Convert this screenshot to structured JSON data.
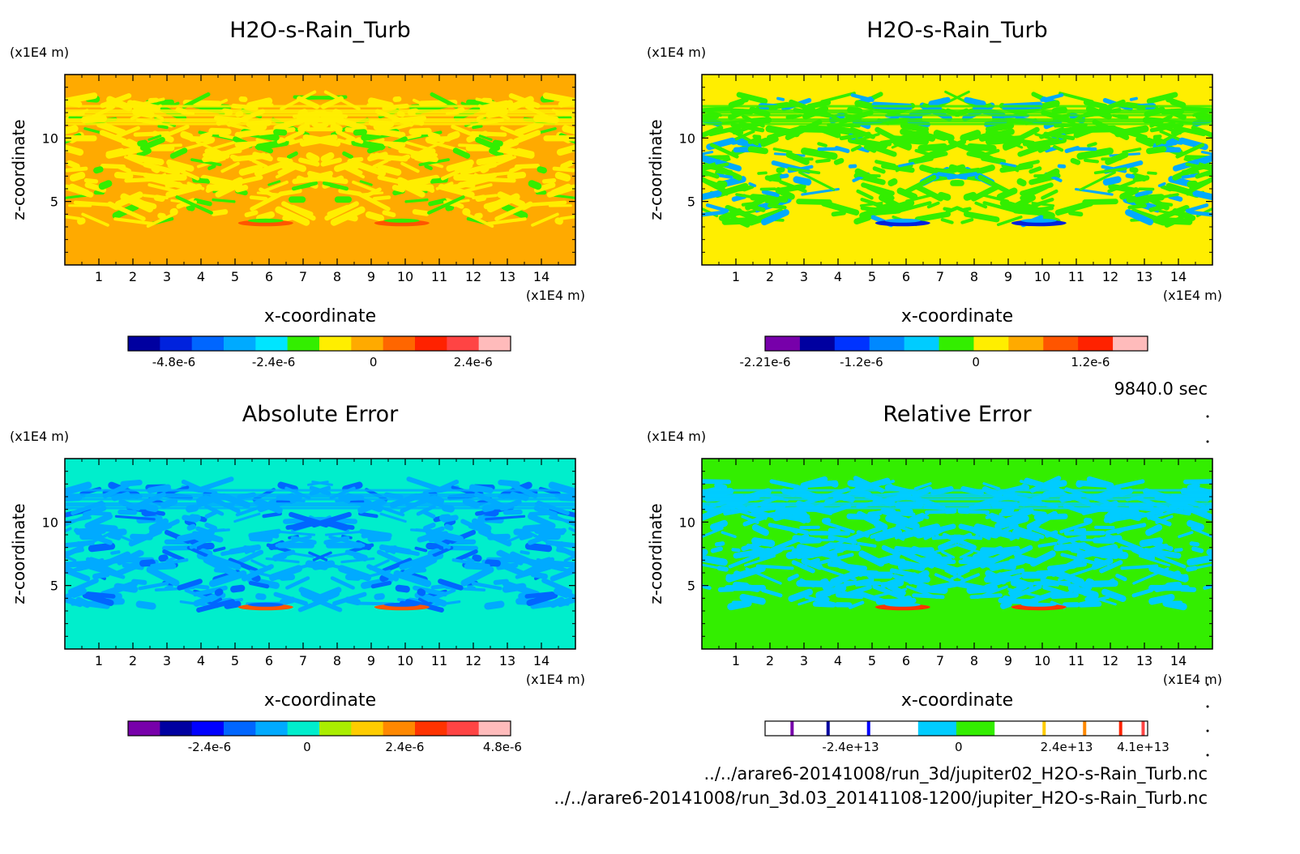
{
  "time_label": "9840.0 sec",
  "footer": {
    "file_a": "../../arare6-20141008/run_3d/jupiter02_H2O-s-Rain_Turb.nc",
    "file_b": "../../arare6-20141008/run_3d.03_20141108-1200/jupiter_H2O-s-Rain_Turb.nc"
  },
  "chart_data": [
    {
      "type": "heatmap",
      "title": "H2O-s-Rain_Turb",
      "xlabel": "x-coordinate",
      "ylabel": "z-coordinate",
      "x_unit": "(x1E4 m)",
      "y_unit": "(x1E4 m)",
      "xlim": [
        0,
        15
      ],
      "ylim": [
        0,
        15
      ],
      "x_ticks": [
        "1",
        "2",
        "3",
        "4",
        "5",
        "6",
        "7",
        "8",
        "9",
        "10",
        "11",
        "12",
        "13",
        "14"
      ],
      "y_ticks": [
        "5",
        "10"
      ],
      "background_color": "#ffaa00",
      "pattern_color": "#ffee00",
      "pattern_color_2": "#33ee00",
      "hotspot_color": "#ff5500",
      "colorbar": {
        "colors": [
          "#0000a0",
          "#0022dd",
          "#0066ff",
          "#00aaff",
          "#00e5ff",
          "#33ee00",
          "#ffee00",
          "#ffaa00",
          "#ff6600",
          "#ff2200",
          "#ff4444",
          "#ffbbbb"
        ],
        "tick_labels": [
          "-4.8e-6",
          "-2.4e-6",
          "0",
          "2.4e-6"
        ],
        "tick_positions": [
          -4.8e-06,
          -2.4e-06,
          0,
          2.4e-06
        ],
        "range": [
          -5.9e-06,
          3.3e-06
        ]
      }
    },
    {
      "type": "heatmap",
      "title": "H2O-s-Rain_Turb",
      "xlabel": "x-coordinate",
      "ylabel": "z-coordinate",
      "x_unit": "(x1E4 m)",
      "y_unit": "(x1E4 m)",
      "xlim": [
        0,
        15
      ],
      "ylim": [
        0,
        15
      ],
      "x_ticks": [
        "1",
        "2",
        "3",
        "4",
        "5",
        "6",
        "7",
        "8",
        "9",
        "10",
        "11",
        "12",
        "13",
        "14"
      ],
      "y_ticks": [
        "5",
        "10"
      ],
      "background_color": "#ffee00",
      "pattern_color": "#33ee00",
      "pattern_color_2": "#00aaff",
      "hotspot_color": "#0022dd",
      "colorbar": {
        "colors": [
          "#7700aa",
          "#0000a0",
          "#0033ff",
          "#0088ff",
          "#00ccff",
          "#33ee00",
          "#ffee00",
          "#ffaa00",
          "#ff5500",
          "#ff2200",
          "#ffbbbb"
        ],
        "tick_labels": [
          "-2.21e-6",
          "-1.2e-6",
          "0",
          "1.2e-6"
        ],
        "tick_positions": [
          -2.21e-06,
          -1.2e-06,
          0,
          1.2e-06
        ],
        "range": [
          -2.21e-06,
          1.8e-06
        ]
      }
    },
    {
      "type": "heatmap",
      "title": "Absolute Error",
      "xlabel": "x-coordinate",
      "ylabel": "z-coordinate",
      "x_unit": "(x1E4 m)",
      "y_unit": "(x1E4 m)",
      "xlim": [
        0,
        15
      ],
      "ylim": [
        0,
        15
      ],
      "x_ticks": [
        "1",
        "2",
        "3",
        "4",
        "5",
        "6",
        "7",
        "8",
        "9",
        "10",
        "11",
        "12",
        "13",
        "14"
      ],
      "y_ticks": [
        "5",
        "10"
      ],
      "background_color": "#00eecc",
      "pattern_color": "#00aaff",
      "pattern_color_2": "#0066ff",
      "hotspot_color": "#ff5500",
      "colorbar": {
        "colors": [
          "#7700aa",
          "#0000a0",
          "#0000ff",
          "#0066ff",
          "#00aaff",
          "#00eecc",
          "#aaee00",
          "#ffcc00",
          "#ff8800",
          "#ff3300",
          "#ff4444",
          "#ffbbbb"
        ],
        "tick_labels": [
          "-2.4e-6",
          "0",
          "2.4e-6",
          "4.8e-6"
        ],
        "tick_positions": [
          -2.4e-06,
          0,
          2.4e-06,
          4.8e-06
        ],
        "range": [
          -4.4e-06,
          5e-06
        ]
      }
    },
    {
      "type": "heatmap",
      "title": "Relative Error",
      "xlabel": "x-coordinate",
      "ylabel": "z-coordinate",
      "x_unit": "(x1E4 m)",
      "y_unit": "(x1E4 m)",
      "xlim": [
        0,
        15
      ],
      "ylim": [
        0,
        15
      ],
      "x_ticks": [
        "1",
        "2",
        "3",
        "4",
        "5",
        "6",
        "7",
        "8",
        "9",
        "10",
        "11",
        "12",
        "13",
        "14"
      ],
      "y_ticks": [
        "5",
        "10"
      ],
      "background_color": "#33ee00",
      "pattern_color": "#00ccff",
      "pattern_color_2": "#00ccff",
      "hotspot_color": "#ff3300",
      "colorbar": {
        "colors": [
          "#ffffff",
          "#ffffff",
          "#ffffff",
          "#ffffff",
          "#00ccff",
          "#33ee00",
          "#ffffff",
          "#ffffff",
          "#ffffff",
          "#ffffff"
        ],
        "lines": [
          {
            "value": -37000000000000.0,
            "color": "#7700aa"
          },
          {
            "value": -29000000000000.0,
            "color": "#0000a0"
          },
          {
            "value": -20000000000000.0,
            "color": "#0000ff"
          },
          {
            "value": 19000000000000.0,
            "color": "#ffcc00"
          },
          {
            "value": 28000000000000.0,
            "color": "#ff8800"
          },
          {
            "value": 36000000000000.0,
            "color": "#ff2200"
          },
          {
            "value": 41000000000000.0,
            "color": "#ff4444"
          }
        ],
        "tick_labels": [
          "-2.4e+13",
          "0",
          "2.4e+13",
          "4.1e+13"
        ],
        "tick_positions": [
          -24000000000000.0,
          0,
          24000000000000.0,
          41000000000000.0
        ],
        "range": [
          -43000000000000.0,
          42000000000000.0
        ]
      }
    }
  ]
}
